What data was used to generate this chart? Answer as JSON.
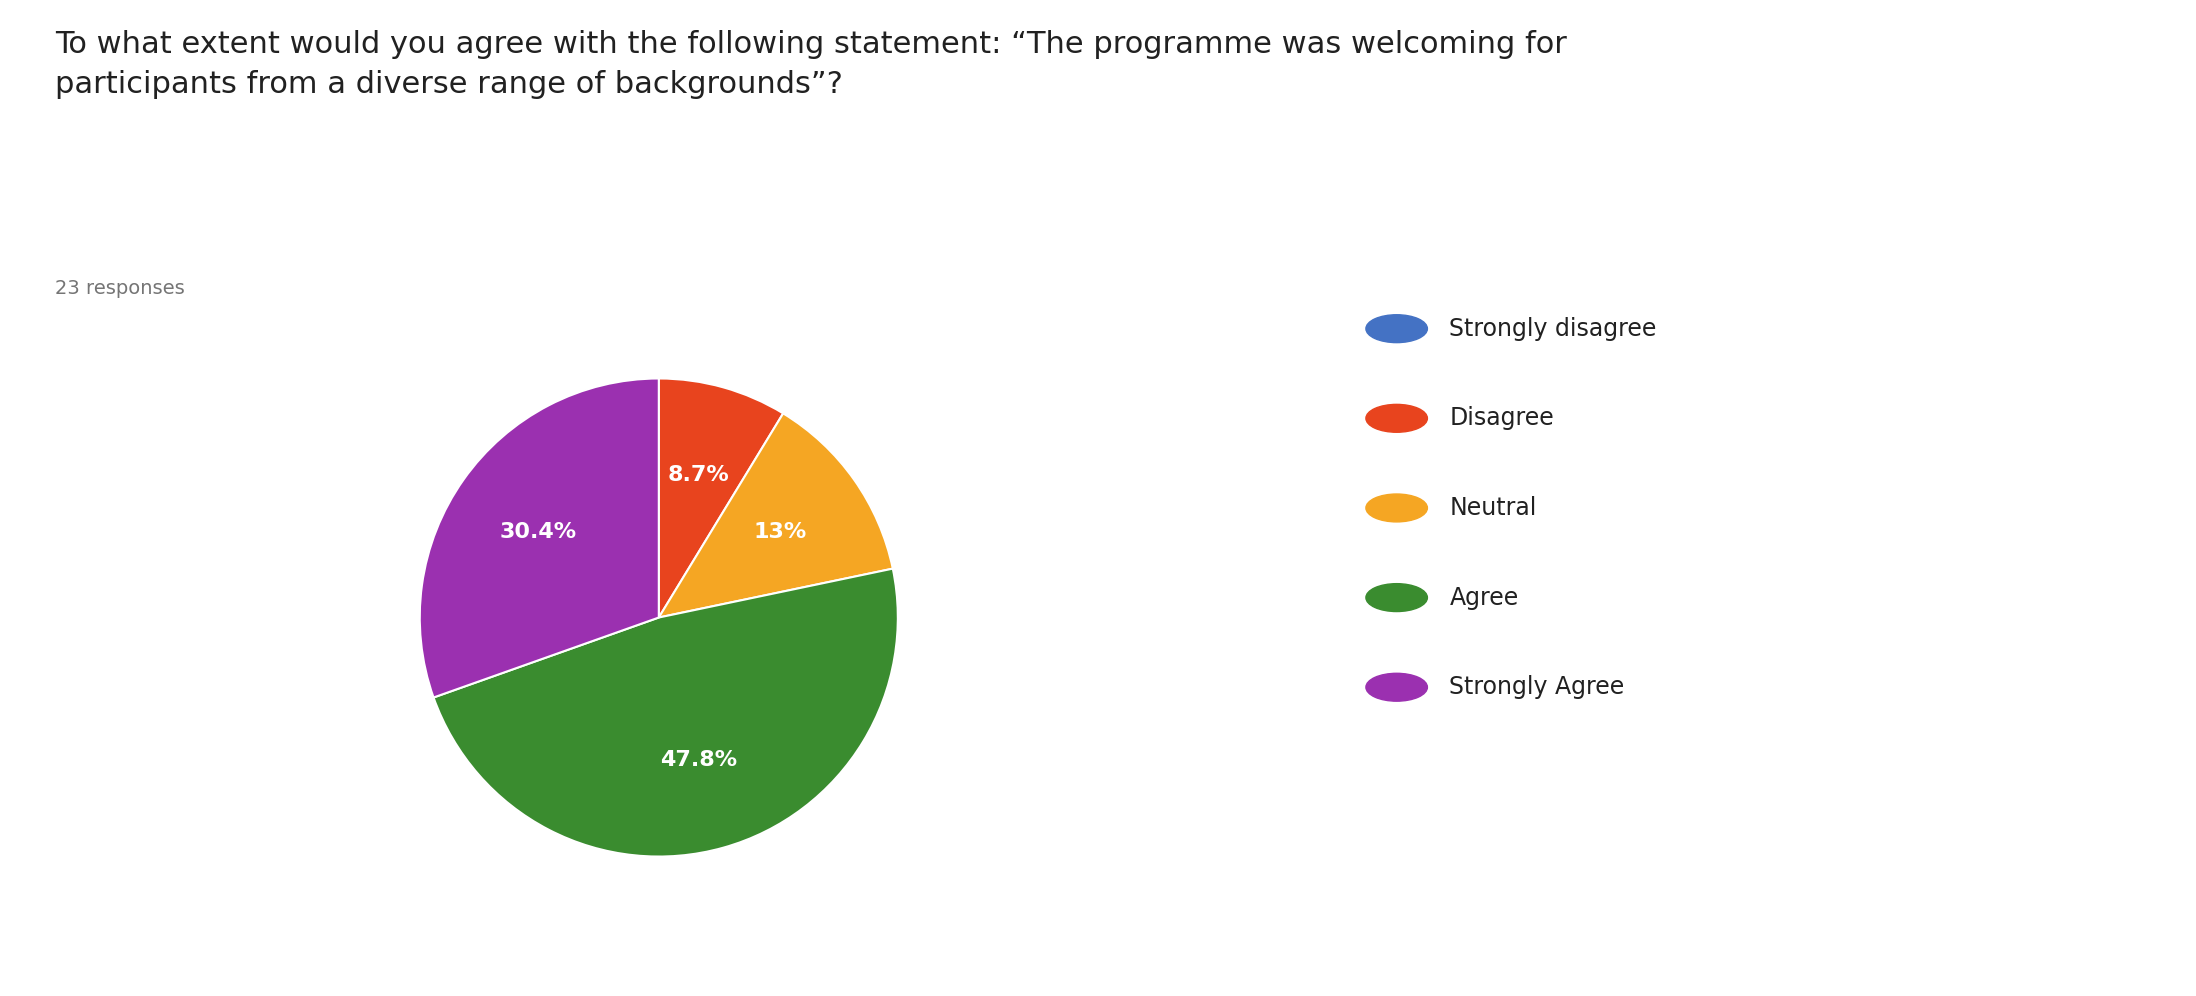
{
  "title": "To what extent would you agree with the following statement: “The programme was welcoming for\nparticipants from a diverse range of backgrounds”?",
  "subtitle": "23 responses",
  "labels": [
    "Strongly disagree",
    "Disagree",
    "Neutral",
    "Agree",
    "Strongly Agree"
  ],
  "values": [
    0,
    8.7,
    13.0,
    47.8,
    30.4
  ],
  "colors": [
    "#4472C4",
    "#E8441E",
    "#F5A623",
    "#3A8C2F",
    "#9B30B0"
  ],
  "pct_labels": [
    "",
    "8.7%",
    "13%",
    "47.8%",
    "30.4%"
  ],
  "background_color": "#ffffff",
  "title_fontsize": 22,
  "subtitle_fontsize": 14,
  "legend_fontsize": 17,
  "pct_fontsize": 16,
  "startangle": 90
}
